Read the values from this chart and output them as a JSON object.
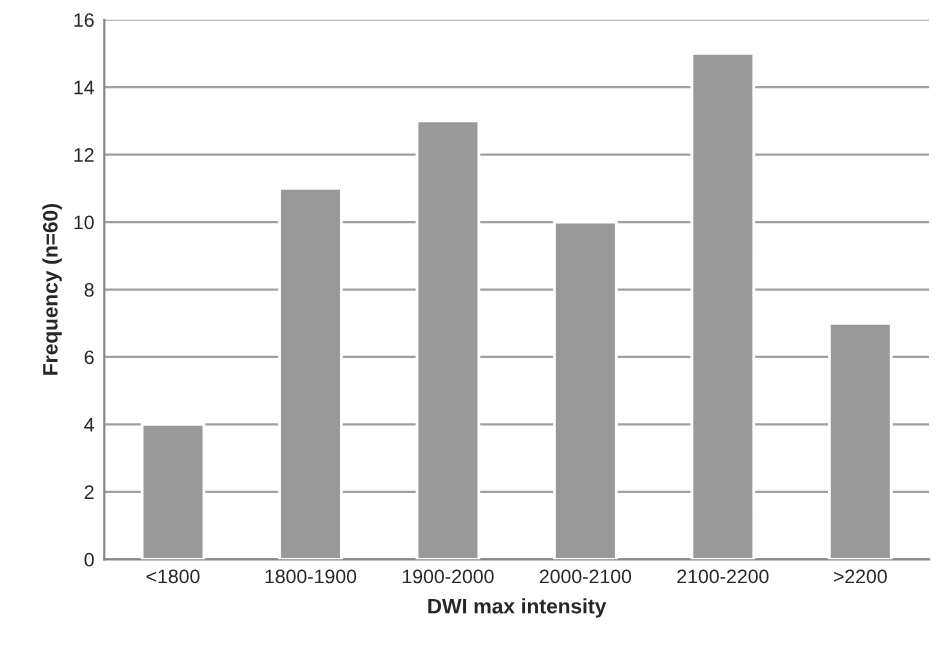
{
  "chart_data": {
    "type": "bar",
    "xlabel": "DWI max intensity",
    "ylabel": "Frequency (n=60)",
    "categories": [
      "<1800",
      "1800-1900",
      "1900-2000",
      "2000-2100",
      "2100-2200",
      ">2200"
    ],
    "values": [
      4,
      11,
      13,
      10,
      15,
      7
    ],
    "color": "#999999",
    "ylim": [
      0,
      16
    ],
    "yticks": [
      0,
      2,
      4,
      6,
      8,
      10,
      12,
      14,
      16
    ],
    "grid": "y",
    "legend": false
  }
}
